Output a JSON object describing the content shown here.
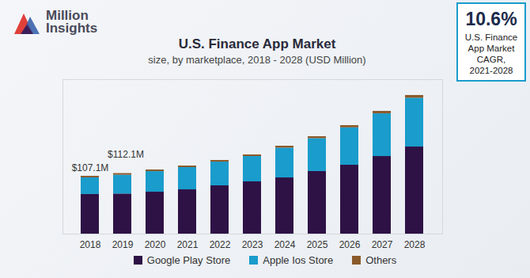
{
  "chart_data": {
    "type": "bar",
    "stacked": true,
    "title": "U.S. Finance App Market",
    "subtitle": "size, by marketplace, 2018 - 2028 (USD Million)",
    "logo": "Million Insights",
    "callout": {
      "value_label": "10.6%",
      "text": "U.S. Finance App Market CAGR, 2021-2028"
    },
    "categories": [
      "2018",
      "2019",
      "2020",
      "2021",
      "2022",
      "2023",
      "2024",
      "2025",
      "2026",
      "2027",
      "2028"
    ],
    "series": [
      {
        "name": "Google Play Store",
        "color": "#2e1246",
        "values": [
          73.4,
          74.3,
          77.7,
          82.1,
          89.5,
          96.8,
          104.1,
          115.9,
          127.6,
          143.7,
          161.3
        ]
      },
      {
        "name": "Apple Ios Store",
        "color": "#1a9ccc",
        "values": [
          30.8,
          34.8,
          38.1,
          41.1,
          43.9,
          46.9,
          55.2,
          61.0,
          69.3,
          79.1,
          90.4
        ]
      },
      {
        "name": "Others",
        "color": "#8b5a2b",
        "values": [
          2.9,
          3.0,
          3.0,
          2.9,
          3.0,
          3.0,
          3.5,
          3.5,
          4.0,
          4.5,
          5.0
        ]
      }
    ],
    "annotations": [
      {
        "x": "2018",
        "value": 107.1,
        "label": "$107.1M"
      },
      {
        "x": "2019",
        "value": 112.1,
        "label": "$112.1M"
      }
    ],
    "ylim": [
      0,
      286
    ],
    "tick_labels": "x",
    "legend": "bottom",
    "grid": false
  }
}
